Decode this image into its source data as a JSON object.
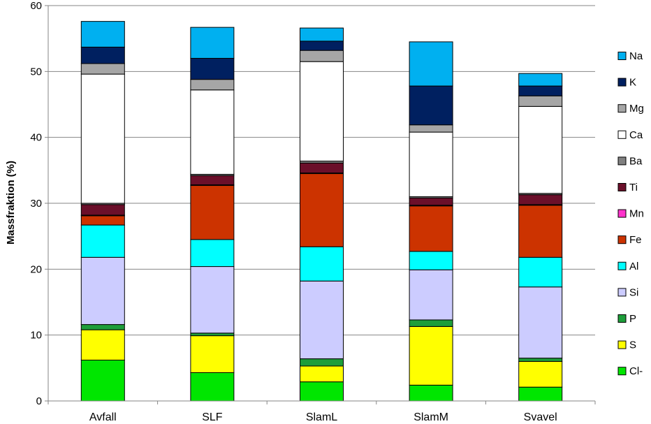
{
  "chart_data": {
    "type": "bar",
    "stacked": true,
    "title": "",
    "xlabel": "",
    "ylabel": "Massfraktion (%)",
    "ylim": [
      0,
      60
    ],
    "yticks": [
      0,
      10,
      20,
      30,
      40,
      50,
      60
    ],
    "grid": true,
    "legend_position": "right",
    "categories": [
      "Avfall",
      "SLF",
      "SlamL",
      "SlamM",
      "Svavel"
    ],
    "series": [
      {
        "name": "Cl-",
        "color": "#00e600",
        "values": [
          6.2,
          4.3,
          2.9,
          2.4,
          2.1
        ]
      },
      {
        "name": "S",
        "color": "#ffff00",
        "values": [
          4.6,
          5.6,
          2.4,
          8.9,
          3.9
        ]
      },
      {
        "name": "P",
        "color": "#1e9e3a",
        "values": [
          0.8,
          0.4,
          1.1,
          1.0,
          0.5
        ]
      },
      {
        "name": "Si",
        "color": "#ccccff",
        "values": [
          10.2,
          10.1,
          11.8,
          7.6,
          10.8
        ]
      },
      {
        "name": "Al",
        "color": "#00ffff",
        "values": [
          4.9,
          4.1,
          5.2,
          2.8,
          4.5
        ]
      },
      {
        "name": "Fe",
        "color": "#cc3300",
        "values": [
          1.4,
          8.2,
          11.1,
          6.9,
          7.9
        ]
      },
      {
        "name": "Mn",
        "color": "#ff33cc",
        "values": [
          0.1,
          0.1,
          0.1,
          0.1,
          0.1
        ]
      },
      {
        "name": "Ti",
        "color": "#6b0f2a",
        "values": [
          1.6,
          1.4,
          1.5,
          1.1,
          1.5
        ]
      },
      {
        "name": "Ba",
        "color": "#808080",
        "values": [
          0.2,
          0.2,
          0.3,
          0.2,
          0.2
        ]
      },
      {
        "name": "Ca",
        "color": "#ffffff",
        "values": [
          19.6,
          12.8,
          15.1,
          9.8,
          13.2
        ]
      },
      {
        "name": "Mg",
        "color": "#a6a6a6",
        "values": [
          1.6,
          1.6,
          1.7,
          1.1,
          1.6
        ]
      },
      {
        "name": "K",
        "color": "#002060",
        "values": [
          2.5,
          3.2,
          1.4,
          5.9,
          1.5
        ]
      },
      {
        "name": "Na",
        "color": "#00b0f0",
        "values": [
          3.9,
          4.7,
          2.0,
          6.7,
          1.9
        ]
      }
    ]
  }
}
